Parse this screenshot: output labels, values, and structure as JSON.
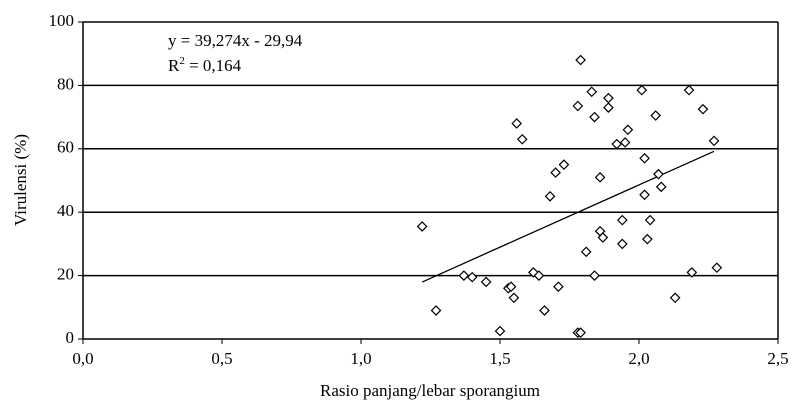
{
  "chart_data": {
    "type": "scatter",
    "xlabel": "Rasio panjang/lebar sporangium",
    "ylabel": "Virulensi (%)",
    "equation": "y = 39,274x - 29,94",
    "r2_label": "R",
    "r2_sup": "2",
    "r2_value": " = 0,164",
    "color": "#000000",
    "grid": true,
    "xlim": [
      0,
      2.5
    ],
    "ylim": [
      0,
      100
    ],
    "xticks": [
      {
        "value": 0,
        "label": "0,0"
      },
      {
        "value": 0.5,
        "label": "0,5"
      },
      {
        "value": 1,
        "label": "1,0"
      },
      {
        "value": 1.5,
        "label": "1,5"
      },
      {
        "value": 2,
        "label": "2,0"
      },
      {
        "value": 2.5,
        "label": "2,5"
      }
    ],
    "yticks": [
      0,
      20,
      40,
      60,
      80,
      100
    ],
    "x": [
      1.22,
      1.27,
      1.37,
      1.4,
      1.45,
      1.5,
      1.53,
      1.54,
      1.55,
      1.56,
      1.58,
      1.62,
      1.64,
      1.66,
      1.68,
      1.7,
      1.71,
      1.73,
      1.78,
      1.78,
      1.79,
      1.79,
      1.81,
      1.83,
      1.84,
      1.84,
      1.86,
      1.87,
      1.86,
      1.89,
      1.89,
      1.92,
      1.94,
      1.94,
      1.95,
      1.96,
      2.01,
      2.02,
      2.02,
      2.03,
      2.04,
      2.06,
      2.07,
      2.08,
      2.13,
      2.18,
      2.19,
      2.23,
      2.27,
      2.28
    ],
    "values": [
      35.5,
      9,
      20,
      19.5,
      18,
      2.5,
      16,
      16.5,
      13,
      68,
      63,
      21,
      20,
      9,
      45,
      52.5,
      16.5,
      55,
      73.5,
      2,
      2,
      88,
      27.5,
      78,
      70,
      20,
      34,
      32,
      51,
      76,
      73,
      61.5,
      37.5,
      30,
      62,
      66,
      78.5,
      57,
      45.5,
      31.5,
      37.5,
      70.5,
      52,
      48,
      13,
      78.5,
      21,
      72.5,
      62.5,
      22.5
    ],
    "trendline": {
      "x": [
        1.22,
        2.27
      ],
      "y": [
        17.97,
        59.21
      ]
    }
  }
}
